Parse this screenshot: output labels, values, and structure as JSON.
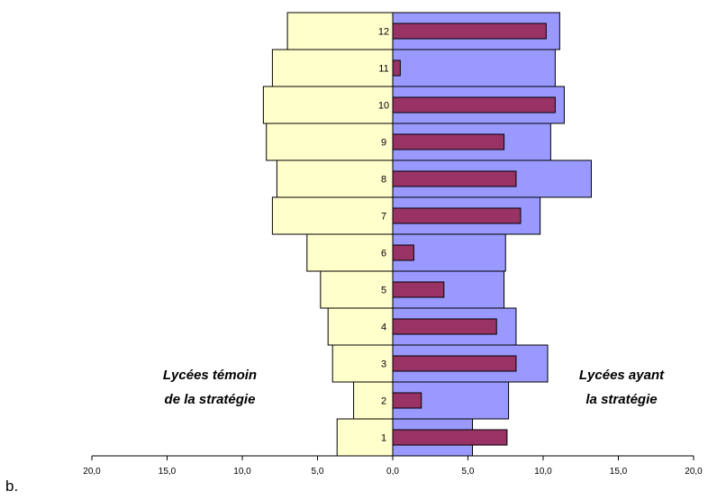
{
  "figure_label": "b.",
  "chart_data": {
    "type": "bar",
    "orientation": "horizontal-pyramid",
    "categories": [
      "1",
      "2",
      "3",
      "4",
      "5",
      "6",
      "7",
      "8",
      "9",
      "10",
      "11",
      "12"
    ],
    "left_group_label": [
      "Lycées témoin",
      "de la stratégie"
    ],
    "right_group_label": [
      "Lycées ayant",
      "la stratégie"
    ],
    "series": [
      {
        "side": "left",
        "values": [
          3.7,
          2.6,
          4.0,
          4.3,
          4.8,
          5.7,
          8.0,
          7.7,
          8.4,
          8.6,
          8.0,
          7.0
        ]
      },
      {
        "side": "right",
        "values": [
          5.3,
          7.7,
          10.3,
          8.2,
          7.4,
          7.5,
          9.8,
          13.2,
          10.5,
          11.4,
          10.8,
          11.1
        ]
      },
      {
        "side": "right",
        "values": [
          7.6,
          1.9,
          8.2,
          6.9,
          3.4,
          1.4,
          8.5,
          8.2,
          7.4,
          10.8,
          0.5,
          10.2
        ]
      }
    ],
    "x_ticks": [
      "20,0",
      "15,0",
      "10,0",
      "5,0",
      "0,0",
      "5,0",
      "10,0",
      "15,0",
      "20,0"
    ],
    "xlim": [
      -20,
      20
    ],
    "colors": {
      "left": "#ffffcc",
      "right_outer": "#9999ff",
      "right_inner": "#993366",
      "outline": "#000000"
    },
    "grid": false,
    "legend": "none"
  }
}
